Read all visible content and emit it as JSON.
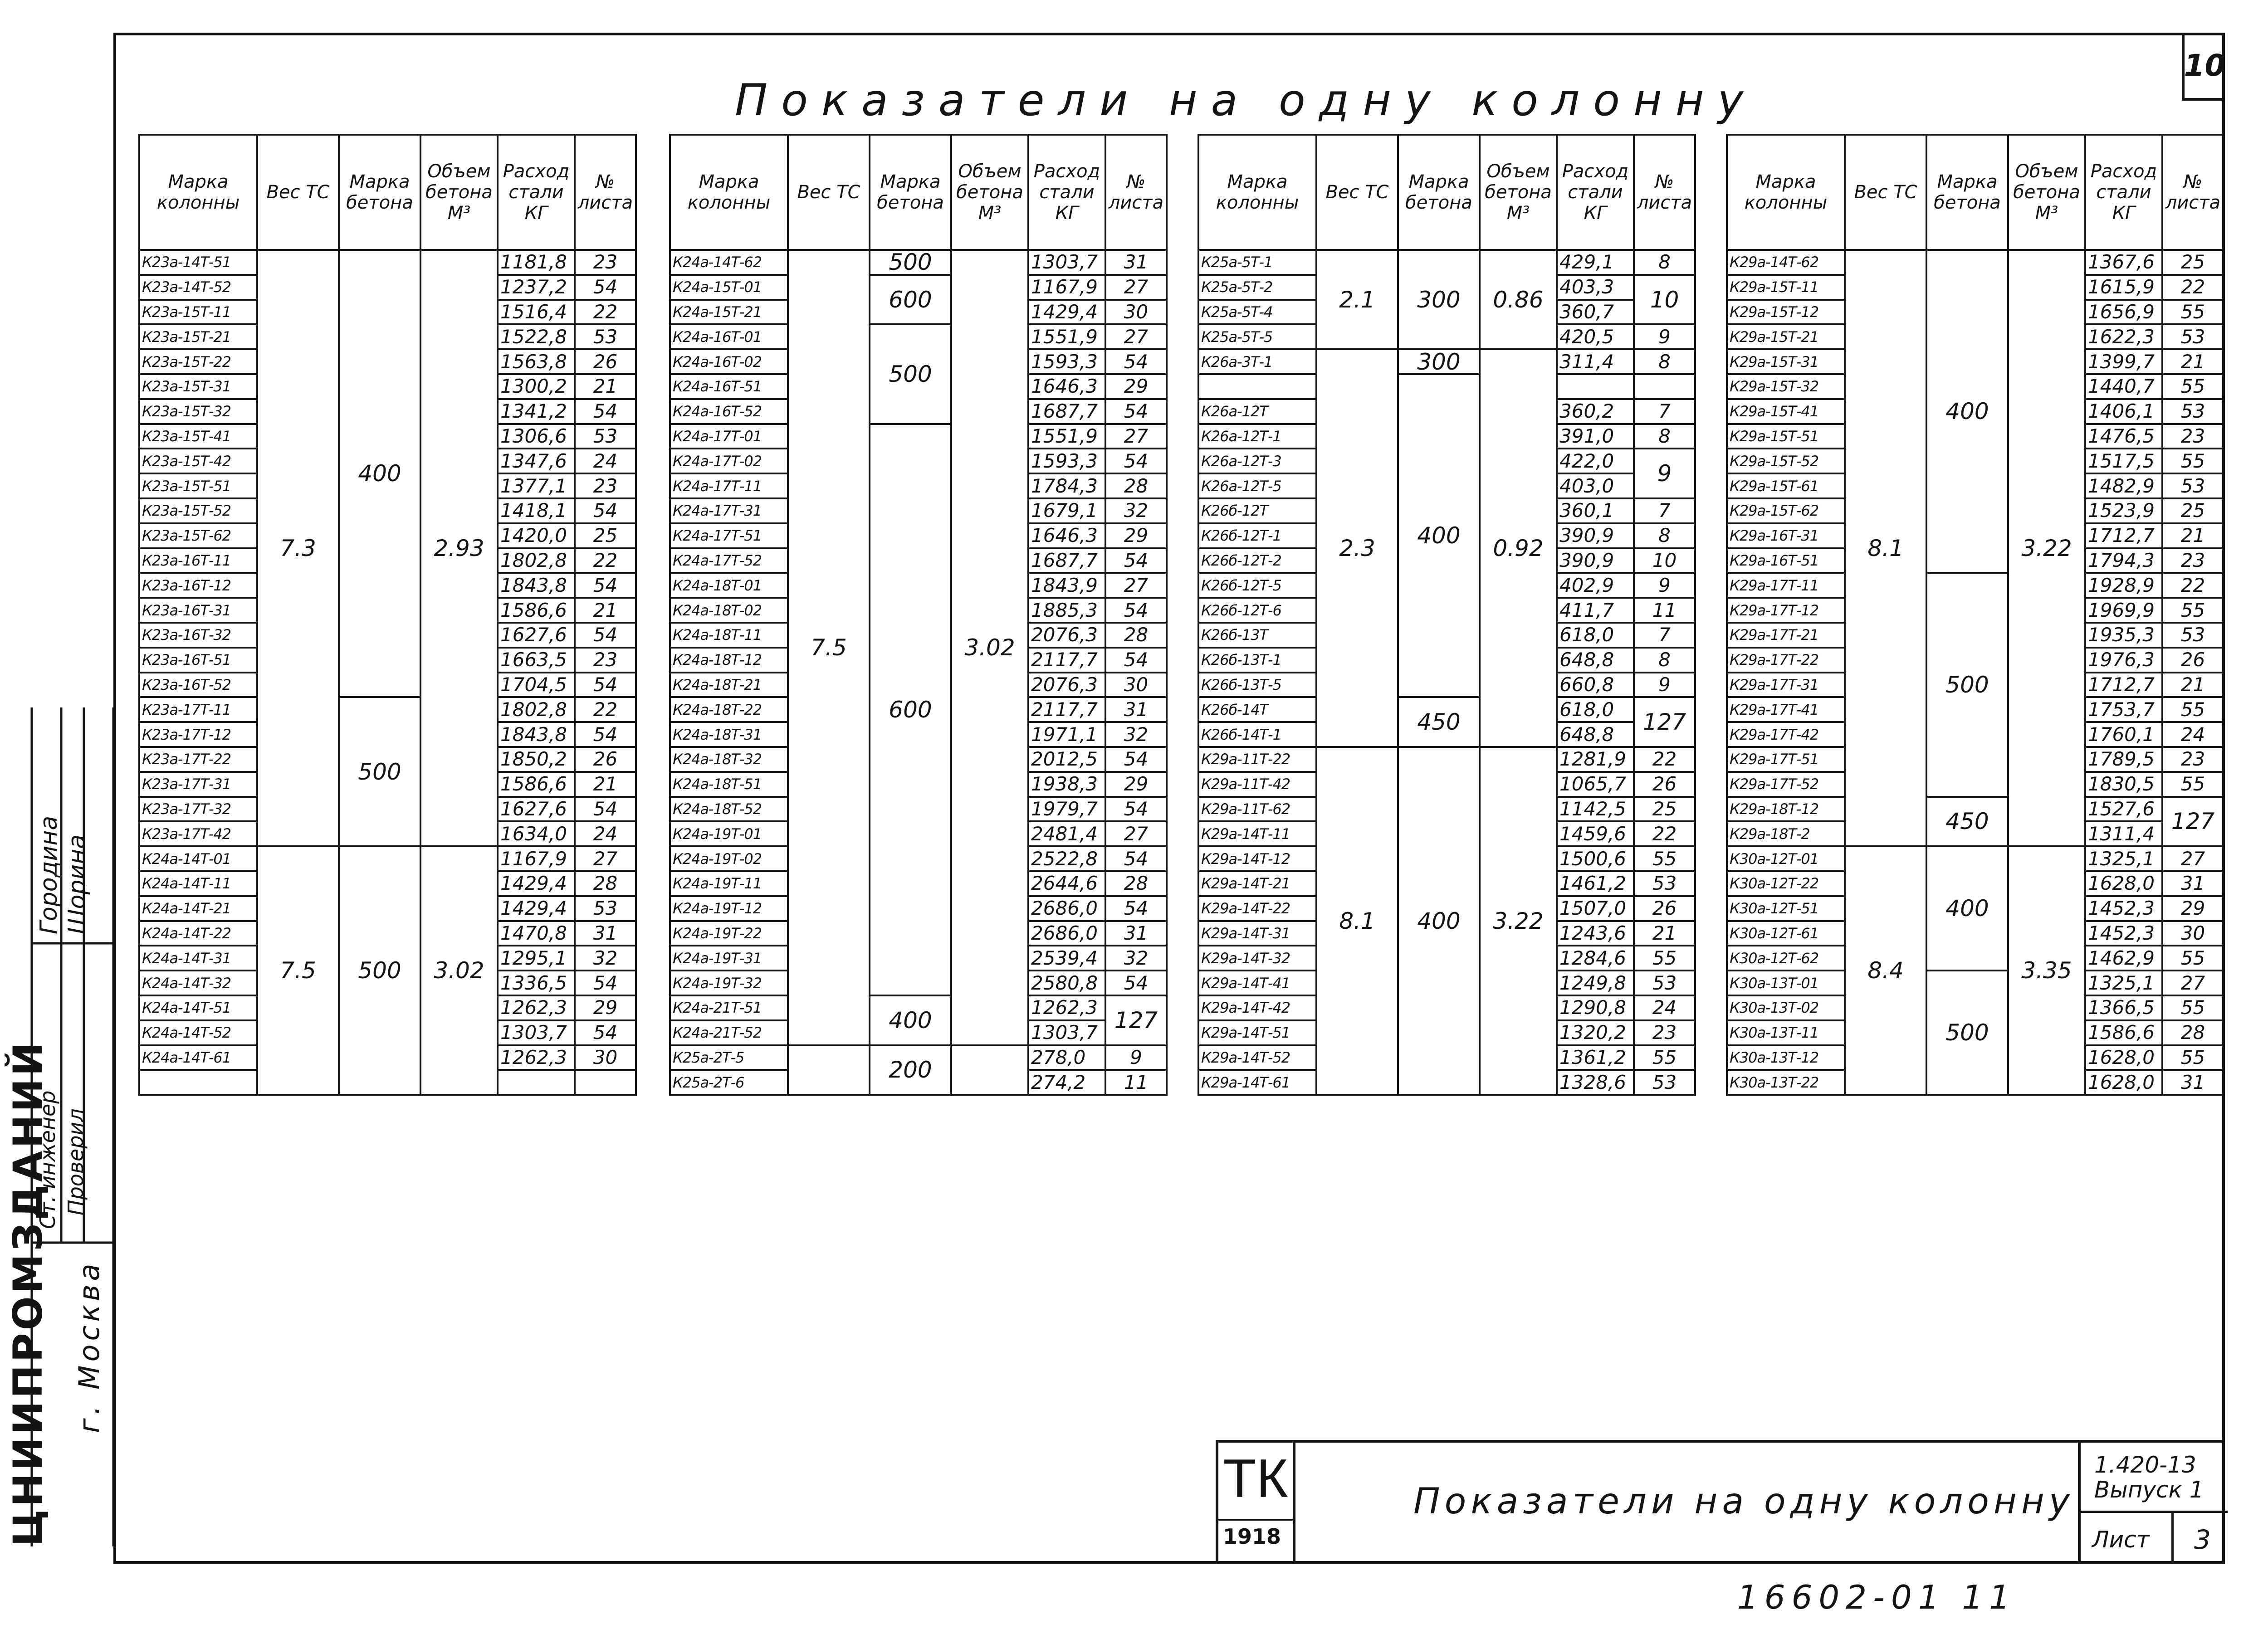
{
  "page_number": "10",
  "title": "Показатели на одну колонну",
  "tables": [
    {
      "headers": [
        "Марка колонны",
        "Вес ТС",
        "Марка бетона",
        "Объем бетона М³",
        "Расход стали КГ",
        "№ листа"
      ],
      "rows": [
        [
          "К23а-14Т-51",
          "1181,8",
          "23"
        ],
        [
          "К23а-14Т-52",
          "1237,2",
          "54"
        ],
        [
          "К23а-15Т-11",
          "1516,4",
          "22"
        ],
        [
          "К23а-15Т-21",
          "1522,8",
          "53"
        ],
        [
          "К23а-15Т-22",
          "1563,8",
          "26"
        ],
        [
          "К23а-15Т-31",
          "1300,2",
          "21"
        ],
        [
          "К23а-15Т-32",
          "1341,2",
          "54"
        ],
        [
          "К23а-15Т-41",
          "1306,6",
          "53"
        ],
        [
          "К23а-15Т-42",
          "1347,6",
          "24"
        ],
        [
          "К23а-15Т-51",
          "1377,1",
          "23"
        ],
        [
          "К23а-15Т-52",
          "1418,1",
          "54"
        ],
        [
          "К23а-15Т-62",
          "1420,0",
          "25"
        ],
        [
          "К23а-16Т-11",
          "1802,8",
          "22"
        ],
        [
          "К23а-16Т-12",
          "1843,8",
          "54"
        ],
        [
          "К23а-16Т-31",
          "1586,6",
          "21"
        ],
        [
          "К23а-16Т-32",
          "1627,6",
          "54"
        ],
        [
          "К23а-16Т-51",
          "1663,5",
          "23"
        ],
        [
          "К23а-16Т-52",
          "1704,5",
          "54"
        ],
        [
          "К23а-17Т-11",
          "1802,8",
          "22"
        ],
        [
          "К23а-17Т-12",
          "1843,8",
          "54"
        ],
        [
          "К23а-17Т-22",
          "1850,2",
          "26"
        ],
        [
          "К23а-17Т-31",
          "1586,6",
          "21"
        ],
        [
          "К23а-17Т-32",
          "1627,6",
          "54"
        ],
        [
          "К23а-17Т-42",
          "1634,0",
          "24"
        ],
        [
          "К24а-14Т-01",
          "1167,9",
          "27"
        ],
        [
          "К24а-14Т-11",
          "1429,4",
          "28"
        ],
        [
          "К24а-14Т-21",
          "1429,4",
          "53"
        ],
        [
          "К24а-14Т-22",
          "1470,8",
          "31"
        ],
        [
          "К24а-14Т-31",
          "1295,1",
          "32"
        ],
        [
          "К24а-14Т-32",
          "1336,5",
          "54"
        ],
        [
          "К24а-14Т-51",
          "1262,3",
          "29"
        ],
        [
          "К24а-14Т-52",
          "1303,7",
          "54"
        ],
        [
          "К24а-14Т-61",
          "1262,3",
          "30"
        ],
        [
          "",
          "",
          ""
        ]
      ],
      "merged": [
        {
          "col": 1,
          "start": 0,
          "span": 24,
          "text": "7.3"
        },
        {
          "col": 1,
          "start": 24,
          "span": 10,
          "text": "7.5"
        },
        {
          "col": 2,
          "start": 0,
          "span": 18,
          "text": "400"
        },
        {
          "col": 2,
          "start": 18,
          "span": 6,
          "text": "500"
        },
        {
          "col": 2,
          "start": 24,
          "span": 10,
          "text": "500"
        },
        {
          "col": 3,
          "start": 0,
          "span": 24,
          "text": "2.93"
        },
        {
          "col": 3,
          "start": 24,
          "span": 10,
          "text": "3.02"
        }
      ]
    },
    {
      "headers": [
        "Марка колонны",
        "Вес ТС",
        "Марка бетона",
        "Объем бетона М³",
        "Расход стали КГ",
        "№ листа"
      ],
      "rows": [
        [
          "К24а-14Т-62",
          "1303,7",
          "31"
        ],
        [
          "К24а-15Т-01",
          "1167,9",
          "27"
        ],
        [
          "К24а-15Т-21",
          "1429,4",
          "30"
        ],
        [
          "К24а-16Т-01",
          "1551,9",
          "27"
        ],
        [
          "К24а-16Т-02",
          "1593,3",
          "54"
        ],
        [
          "К24а-16Т-51",
          "1646,3",
          "29"
        ],
        [
          "К24а-16Т-52",
          "1687,7",
          "54"
        ],
        [
          "К24а-17Т-01",
          "1551,9",
          "27"
        ],
        [
          "К24а-17Т-02",
          "1593,3",
          "54"
        ],
        [
          "К24а-17Т-11",
          "1784,3",
          "28"
        ],
        [
          "К24а-17Т-31",
          "1679,1",
          "32"
        ],
        [
          "К24а-17Т-51",
          "1646,3",
          "29"
        ],
        [
          "К24а-17Т-52",
          "1687,7",
          "54"
        ],
        [
          "К24а-18Т-01",
          "1843,9",
          "27"
        ],
        [
          "К24а-18Т-02",
          "1885,3",
          "54"
        ],
        [
          "К24а-18Т-11",
          "2076,3",
          "28"
        ],
        [
          "К24а-18Т-12",
          "2117,7",
          "54"
        ],
        [
          "К24а-18Т-21",
          "2076,3",
          "30"
        ],
        [
          "К24а-18Т-22",
          "2117,7",
          "31"
        ],
        [
          "К24а-18Т-31",
          "1971,1",
          "32"
        ],
        [
          "К24а-18Т-32",
          "2012,5",
          "54"
        ],
        [
          "К24а-18Т-51",
          "1938,3",
          "29"
        ],
        [
          "К24а-18Т-52",
          "1979,7",
          "54"
        ],
        [
          "К24а-19Т-01",
          "2481,4",
          "27"
        ],
        [
          "К24а-19Т-02",
          "2522,8",
          "54"
        ],
        [
          "К24а-19Т-11",
          "2644,6",
          "28"
        ],
        [
          "К24а-19Т-12",
          "2686,0",
          "54"
        ],
        [
          "К24а-19Т-22",
          "2686,0",
          "31"
        ],
        [
          "К24а-19Т-31",
          "2539,4",
          "32"
        ],
        [
          "К24а-19Т-32",
          "2580,8",
          "54"
        ],
        [
          "К24а-21Т-51",
          "1262,3",
          ""
        ],
        [
          "К24а-21Т-52",
          "1303,7",
          ""
        ],
        [
          "К25а-2Т-5",
          "278,0",
          "9"
        ],
        [
          "К25а-2Т-6",
          "274,2",
          "11"
        ]
      ],
      "merged": [
        {
          "col": 1,
          "start": 0,
          "span": 32,
          "text": "7.5"
        },
        {
          "col": 1,
          "start": 32,
          "span": 2,
          "text": ""
        },
        {
          "col": 2,
          "start": 0,
          "span": 1,
          "text": "500"
        },
        {
          "col": 2,
          "start": 1,
          "span": 2,
          "text": "600"
        },
        {
          "col": 2,
          "start": 3,
          "span": 4,
          "text": "500"
        },
        {
          "col": 2,
          "start": 7,
          "span": 23,
          "text": "600"
        },
        {
          "col": 2,
          "start": 30,
          "span": 2,
          "text": "400"
        },
        {
          "col": 2,
          "start": 32,
          "span": 2,
          "text": "200"
        },
        {
          "col": 3,
          "start": 0,
          "span": 32,
          "text": "3.02"
        },
        {
          "col": 3,
          "start": 32,
          "span": 2,
          "text": ""
        },
        {
          "col": 5,
          "start": 30,
          "span": 2,
          "text": "127"
        }
      ]
    },
    {
      "headers": [
        "Марка колонны",
        "Вес ТС",
        "Марка бетона",
        "Объем бетона М³",
        "Расход стали КГ",
        "№ листа"
      ],
      "rows": [
        [
          "К25а-5Т-1",
          "429,1",
          "8"
        ],
        [
          "К25а-5Т-2",
          "403,3",
          ""
        ],
        [
          "К25а-5Т-4",
          "360,7",
          ""
        ],
        [
          "К25а-5Т-5",
          "420,5",
          "9"
        ],
        [
          "К26а-3Т-1",
          "311,4",
          "8"
        ],
        [
          "",
          "",
          ""
        ],
        [
          "К26а-12Т",
          "360,2",
          "7"
        ],
        [
          "К26а-12Т-1",
          "391,0",
          "8"
        ],
        [
          "К26а-12Т-3",
          "422,0",
          ""
        ],
        [
          "К26а-12Т-5",
          "403,0",
          ""
        ],
        [
          "К26б-12Т",
          "360,1",
          "7"
        ],
        [
          "К26б-12Т-1",
          "390,9",
          "8"
        ],
        [
          "К26б-12Т-2",
          "390,9",
          "10"
        ],
        [
          "К26б-12Т-5",
          "402,9",
          "9"
        ],
        [
          "К26б-12Т-6",
          "411,7",
          "11"
        ],
        [
          "К26б-13Т",
          "618,0",
          "7"
        ],
        [
          "К26б-13Т-1",
          "648,8",
          "8"
        ],
        [
          "К26б-13Т-5",
          "660,8",
          "9"
        ],
        [
          "К26б-14Т",
          "618,0",
          ""
        ],
        [
          "К26б-14Т-1",
          "648,8",
          ""
        ],
        [
          "К29а-11Т-22",
          "1281,9",
          "22"
        ],
        [
          "К29а-11Т-42",
          "1065,7",
          "26"
        ],
        [
          "К29а-11Т-62",
          "1142,5",
          "25"
        ],
        [
          "К29а-14Т-11",
          "1459,6",
          "22"
        ],
        [
          "К29а-14Т-12",
          "1500,6",
          "55"
        ],
        [
          "К29а-14Т-21",
          "1461,2",
          "53"
        ],
        [
          "К29а-14Т-22",
          "1507,0",
          "26"
        ],
        [
          "К29а-14Т-31",
          "1243,6",
          "21"
        ],
        [
          "К29а-14Т-32",
          "1284,6",
          "55"
        ],
        [
          "К29а-14Т-41",
          "1249,8",
          "53"
        ],
        [
          "К29а-14Т-42",
          "1290,8",
          "24"
        ],
        [
          "К29а-14Т-51",
          "1320,2",
          "23"
        ],
        [
          "К29а-14Т-52",
          "1361,2",
          "55"
        ],
        [
          "К29а-14Т-61",
          "1328,6",
          "53"
        ]
      ],
      "merged": [
        {
          "col": 1,
          "start": 0,
          "span": 4,
          "text": "2.1"
        },
        {
          "col": 1,
          "start": 4,
          "span": 16,
          "text": "2.3"
        },
        {
          "col": 1,
          "start": 20,
          "span": 14,
          "text": "8.1"
        },
        {
          "col": 2,
          "start": 0,
          "span": 4,
          "text": "300"
        },
        {
          "col": 2,
          "start": 4,
          "span": 1,
          "text": "300"
        },
        {
          "col": 2,
          "start": 5,
          "span": 13,
          "text": "400"
        },
        {
          "col": 2,
          "start": 18,
          "span": 2,
          "text": "450"
        },
        {
          "col": 2,
          "start": 20,
          "span": 14,
          "text": "400"
        },
        {
          "col": 3,
          "start": 0,
          "span": 4,
          "text": "0.86"
        },
        {
          "col": 3,
          "start": 4,
          "span": 16,
          "text": "0.92"
        },
        {
          "col": 3,
          "start": 20,
          "span": 14,
          "text": "3.22"
        },
        {
          "col": 5,
          "start": 1,
          "span": 2,
          "text": "10"
        },
        {
          "col": 5,
          "start": 8,
          "span": 2,
          "text": "9"
        },
        {
          "col": 5,
          "start": 18,
          "span": 2,
          "text": "127"
        }
      ]
    },
    {
      "headers": [
        "Марка колонны",
        "Вес ТС",
        "Марка бетона",
        "Объем бетона М³",
        "Расход стали КГ",
        "№ листа"
      ],
      "rows": [
        [
          "К29а-14Т-62",
          "1367,6",
          "25"
        ],
        [
          "К29а-15Т-11",
          "1615,9",
          "22"
        ],
        [
          "К29а-15Т-12",
          "1656,9",
          "55"
        ],
        [
          "К29а-15Т-21",
          "1622,3",
          "53"
        ],
        [
          "К29а-15Т-31",
          "1399,7",
          "21"
        ],
        [
          "К29а-15Т-32",
          "1440,7",
          "55"
        ],
        [
          "К29а-15Т-41",
          "1406,1",
          "53"
        ],
        [
          "К29а-15Т-51",
          "1476,5",
          "23"
        ],
        [
          "К29а-15Т-52",
          "1517,5",
          "55"
        ],
        [
          "К29а-15Т-61",
          "1482,9",
          "53"
        ],
        [
          "К29а-15Т-62",
          "1523,9",
          "25"
        ],
        [
          "К29а-16Т-31",
          "1712,7",
          "21"
        ],
        [
          "К29а-16Т-51",
          "1794,3",
          "23"
        ],
        [
          "К29а-17Т-11",
          "1928,9",
          "22"
        ],
        [
          "К29а-17Т-12",
          "1969,9",
          "55"
        ],
        [
          "К29а-17Т-21",
          "1935,3",
          "53"
        ],
        [
          "К29а-17Т-22",
          "1976,3",
          "26"
        ],
        [
          "К29а-17Т-31",
          "1712,7",
          "21"
        ],
        [
          "К29а-17Т-41",
          "1753,7",
          "55"
        ],
        [
          "К29а-17Т-42",
          "1760,1",
          "24"
        ],
        [
          "К29а-17Т-51",
          "1789,5",
          "23"
        ],
        [
          "К29а-17Т-52",
          "1830,5",
          "55"
        ],
        [
          "К29а-18Т-12",
          "1527,6",
          ""
        ],
        [
          "К29а-18Т-2",
          "1311,4",
          ""
        ],
        [
          "К30а-12Т-01",
          "1325,1",
          "27"
        ],
        [
          "К30а-12Т-22",
          "1628,0",
          "31"
        ],
        [
          "К30а-12Т-51",
          "1452,3",
          "29"
        ],
        [
          "К30а-12Т-61",
          "1452,3",
          "30"
        ],
        [
          "К30а-12Т-62",
          "1462,9",
          "55"
        ],
        [
          "К30а-13Т-01",
          "1325,1",
          "27"
        ],
        [
          "К30а-13Т-02",
          "1366,5",
          "55"
        ],
        [
          "К30а-13Т-11",
          "1586,6",
          "28"
        ],
        [
          "К30а-13Т-12",
          "1628,0",
          "55"
        ],
        [
          "К30а-13Т-22",
          "1628,0",
          "31"
        ]
      ],
      "merged": [
        {
          "col": 1,
          "start": 0,
          "span": 24,
          "text": "8.1"
        },
        {
          "col": 1,
          "start": 24,
          "span": 10,
          "text": "8.4"
        },
        {
          "col": 2,
          "start": 0,
          "span": 13,
          "text": "400"
        },
        {
          "col": 2,
          "start": 13,
          "span": 9,
          "text": "500"
        },
        {
          "col": 2,
          "start": 22,
          "span": 2,
          "text": "450"
        },
        {
          "col": 2,
          "start": 24,
          "span": 5,
          "text": "400"
        },
        {
          "col": 2,
          "start": 29,
          "span": 5,
          "text": "500"
        },
        {
          "col": 3,
          "start": 0,
          "span": 24,
          "text": "3.22"
        },
        {
          "col": 3,
          "start": 24,
          "span": 10,
          "text": "3.35"
        },
        {
          "col": 5,
          "start": 22,
          "span": 2,
          "text": "127"
        }
      ]
    }
  ],
  "side_stamp": {
    "org": "ЦНИИПРОМЗДАНИЙ",
    "city": "г. Москва",
    "role_1": "Ст. инженер",
    "role_2": "Проверил",
    "name_1": "Городина",
    "name_2": "Шорина"
  },
  "title_block": {
    "logo": "ТК",
    "logo_number": "1918",
    "title": "Показатели на одну колонну",
    "code": "1.420-13",
    "issue": "Выпуск 1",
    "sheet_label": "Лист",
    "sheet_number": "3"
  },
  "bottom_code": "16602-01 11"
}
